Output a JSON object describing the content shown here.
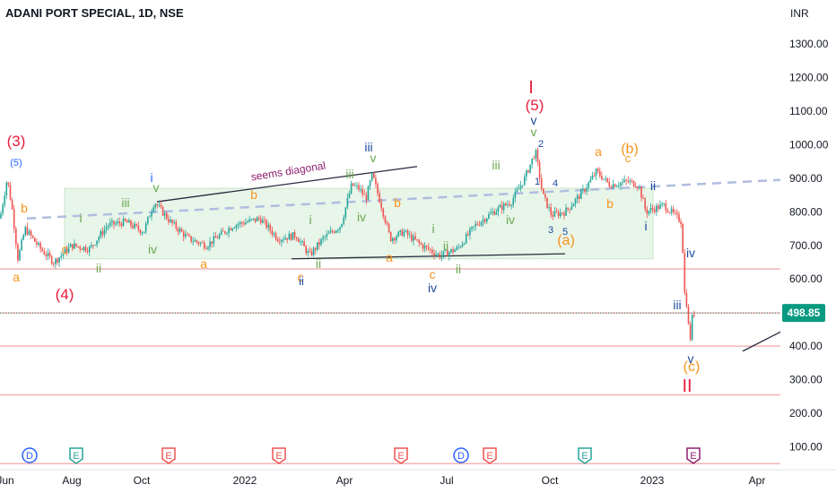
{
  "header": {
    "title": "ADANI PORT SPECIAL, 1D, NSE"
  },
  "colors": {
    "up": "#26a69a",
    "down": "#ef5350",
    "red": "#e91e3c",
    "orange": "#f7931e",
    "green": "#6aa84f",
    "blue": "#2962ff",
    "navy": "#1a4a9a",
    "purple": "#8e1f6e",
    "rect": "#e8f5e9",
    "dash": "#b0bde0",
    "price": "#089981",
    "hline": "#f4b6b6"
  },
  "chart_data": {
    "type": "candlestick",
    "currency": "INR",
    "ylim": [
      50,
      1370
    ],
    "y_ticks": [
      "1300.00",
      "1200.00",
      "1100.00",
      "1000.00",
      "900.00",
      "800.00",
      "700.00",
      "600.00",
      "500.00",
      "400.00",
      "300.00",
      "200.00",
      "100.00"
    ],
    "x_ticks": [
      "Jun",
      "Aug",
      "Oct",
      "2022",
      "Apr",
      "Jul",
      "Oct",
      "2023",
      "Apr"
    ],
    "last_price": "498.85",
    "close_path": [
      [
        0,
        780
      ],
      [
        8,
        900
      ],
      [
        14,
        800
      ],
      [
        20,
        660
      ],
      [
        28,
        750
      ],
      [
        45,
        690
      ],
      [
        60,
        650
      ],
      [
        80,
        700
      ],
      [
        100,
        690
      ],
      [
        120,
        760
      ],
      [
        140,
        770
      ],
      [
        160,
        740
      ],
      [
        172,
        830
      ],
      [
        190,
        770
      ],
      [
        210,
        720
      ],
      [
        230,
        700
      ],
      [
        260,
        760
      ],
      [
        290,
        780
      ],
      [
        310,
        720
      ],
      [
        330,
        730
      ],
      [
        345,
        670
      ],
      [
        360,
        720
      ],
      [
        380,
        760
      ],
      [
        392,
        880
      ],
      [
        400,
        870
      ],
      [
        408,
        840
      ],
      [
        415,
        910
      ],
      [
        425,
        820
      ],
      [
        435,
        720
      ],
      [
        450,
        740
      ],
      [
        470,
        700
      ],
      [
        490,
        670
      ],
      [
        510,
        690
      ],
      [
        530,
        760
      ],
      [
        550,
        800
      ],
      [
        570,
        830
      ],
      [
        585,
        900
      ],
      [
        597,
        980
      ],
      [
        605,
        850
      ],
      [
        615,
        790
      ],
      [
        630,
        800
      ],
      [
        650,
        860
      ],
      [
        665,
        920
      ],
      [
        680,
        880
      ],
      [
        700,
        890
      ],
      [
        712,
        880
      ],
      [
        720,
        800
      ],
      [
        740,
        820
      ],
      [
        760,
        770
      ],
      [
        763,
        560
      ],
      [
        766,
        520
      ],
      [
        769,
        400
      ],
      [
        771,
        480
      ],
      [
        774,
        498
      ]
    ],
    "hlines": [
      630,
      498.85,
      400,
      255,
      50
    ],
    "dotted_line": 498.85,
    "dashed_line": {
      "from": [
        30,
        780
      ],
      "to": [
        870,
        895
      ]
    },
    "rectangle": {
      "x": [
        72,
        728
      ],
      "y": [
        660,
        870
      ]
    },
    "trendlines": [
      {
        "from": [
          175,
          830
        ],
        "to": [
          465,
          935
        ]
      },
      {
        "from": [
          325,
          660
        ],
        "to": [
          630,
          675
        ]
      },
      {
        "from": [
          828,
          385
        ],
        "to": [
          872,
          445
        ]
      }
    ],
    "events": [
      {
        "x": 33,
        "label": "D",
        "kind": "dividend"
      },
      {
        "x": 85,
        "label": "E",
        "kind": "earnings"
      },
      {
        "x": 188,
        "label": "E",
        "kind": "earnings-red"
      },
      {
        "x": 311,
        "label": "E",
        "kind": "earnings-red"
      },
      {
        "x": 447,
        "label": "E",
        "kind": "earnings-red"
      },
      {
        "x": 514,
        "label": "D",
        "kind": "dividend"
      },
      {
        "x": 546,
        "label": "E",
        "kind": "earnings-red"
      },
      {
        "x": 652,
        "label": "E",
        "kind": "earnings"
      },
      {
        "x": 773,
        "label": "E",
        "kind": "earnings-purple"
      }
    ],
    "annotations": [
      {
        "t": "(3)",
        "x": 18,
        "y": 163,
        "c": "red",
        "s": 17
      },
      {
        "t": "(5)",
        "x": 18,
        "y": 185,
        "c": "blue",
        "s": 11
      },
      {
        "t": "b",
        "x": 27,
        "y": 237,
        "c": "orange",
        "s": 14
      },
      {
        "t": "a",
        "x": 18,
        "y": 314,
        "c": "orange",
        "s": 14
      },
      {
        "t": "c",
        "x": 72,
        "y": 283,
        "c": "orange",
        "s": 14
      },
      {
        "t": "(4)",
        "x": 72,
        "y": 334,
        "c": "red",
        "s": 17
      },
      {
        "t": "i",
        "x": 90,
        "y": 248,
        "c": "green",
        "s": 14
      },
      {
        "t": "ii",
        "x": 110,
        "y": 304,
        "c": "green",
        "s": 14
      },
      {
        "t": "iii",
        "x": 140,
        "y": 231,
        "c": "green",
        "s": 14
      },
      {
        "t": "iv",
        "x": 170,
        "y": 283,
        "c": "green",
        "s": 14
      },
      {
        "t": "i",
        "x": 169,
        "y": 203,
        "c": "blue",
        "s": 14
      },
      {
        "t": "v",
        "x": 174,
        "y": 214,
        "c": "green",
        "s": 14
      },
      {
        "t": "a",
        "x": 227,
        "y": 299,
        "c": "orange",
        "s": 14
      },
      {
        "t": "b",
        "x": 283,
        "y": 222,
        "c": "orange",
        "s": 14
      },
      {
        "t": "seems diagonal",
        "x": 322,
        "y": 195,
        "c": "purple",
        "s": 12,
        "rot": -9
      },
      {
        "t": "i",
        "x": 346,
        "y": 250,
        "c": "green",
        "s": 14
      },
      {
        "t": "c",
        "x": 335,
        "y": 314,
        "c": "orange",
        "s": 14
      },
      {
        "t": "ii",
        "x": 336,
        "y": 318,
        "c": "navy",
        "s": 13
      },
      {
        "t": "ii",
        "x": 355,
        "y": 299,
        "c": "green",
        "s": 14
      },
      {
        "t": "iii",
        "x": 411,
        "y": 169,
        "c": "navy",
        "s": 14
      },
      {
        "t": "iii",
        "x": 390,
        "y": 199,
        "c": "green",
        "s": 14
      },
      {
        "t": "v",
        "x": 416,
        "y": 181,
        "c": "green",
        "s": 14
      },
      {
        "t": "iv",
        "x": 403,
        "y": 247,
        "c": "green",
        "s": 14
      },
      {
        "t": "b",
        "x": 443,
        "y": 231,
        "c": "orange",
        "s": 14
      },
      {
        "t": "a",
        "x": 434,
        "y": 292,
        "c": "orange",
        "s": 14
      },
      {
        "t": "i",
        "x": 483,
        "y": 260,
        "c": "green",
        "s": 14
      },
      {
        "t": "ii",
        "x": 497,
        "y": 279,
        "c": "green",
        "s": 14
      },
      {
        "t": "c",
        "x": 482,
        "y": 311,
        "c": "orange",
        "s": 14
      },
      {
        "t": "iv",
        "x": 482,
        "y": 326,
        "c": "navy",
        "s": 14
      },
      {
        "t": "ii",
        "x": 511,
        "y": 305,
        "c": "green",
        "s": 14
      },
      {
        "t": "iii",
        "x": 553,
        "y": 189,
        "c": "green",
        "s": 14
      },
      {
        "t": "iv",
        "x": 569,
        "y": 250,
        "c": "green",
        "s": 14
      },
      {
        "t": "I",
        "x": 592,
        "y": 104,
        "c": "red",
        "s": 20
      },
      {
        "t": "(5)",
        "x": 596,
        "y": 123,
        "c": "red",
        "s": 17
      },
      {
        "t": "v",
        "x": 595,
        "y": 139,
        "c": "navy",
        "s": 14
      },
      {
        "t": "v",
        "x": 595,
        "y": 152,
        "c": "green",
        "s": 14
      },
      {
        "t": "2",
        "x": 603,
        "y": 164,
        "c": "navy",
        "s": 11
      },
      {
        "t": "1",
        "x": 599,
        "y": 206,
        "c": "navy",
        "s": 11
      },
      {
        "t": "4",
        "x": 619,
        "y": 208,
        "c": "navy",
        "s": 11
      },
      {
        "t": "3",
        "x": 614,
        "y": 260,
        "c": "navy",
        "s": 11
      },
      {
        "t": "5",
        "x": 630,
        "y": 262,
        "c": "navy",
        "s": 11
      },
      {
        "t": "(a)",
        "x": 631,
        "y": 273,
        "c": "orange",
        "s": 16
      },
      {
        "t": "a",
        "x": 667,
        "y": 174,
        "c": "orange",
        "s": 14
      },
      {
        "t": "b",
        "x": 680,
        "y": 232,
        "c": "orange",
        "s": 14
      },
      {
        "t": "(b)",
        "x": 702,
        "y": 171,
        "c": "orange",
        "s": 16
      },
      {
        "t": "c",
        "x": 700,
        "y": 181,
        "c": "orange",
        "s": 13
      },
      {
        "t": "ii",
        "x": 728,
        "y": 212,
        "c": "navy",
        "s": 14
      },
      {
        "t": "i",
        "x": 720,
        "y": 257,
        "c": "navy",
        "s": 14
      },
      {
        "t": "iv",
        "x": 770,
        "y": 287,
        "c": "navy",
        "s": 14
      },
      {
        "t": "iii",
        "x": 755,
        "y": 345,
        "c": "navy",
        "s": 14
      },
      {
        "t": "v",
        "x": 770,
        "y": 405,
        "c": "navy",
        "s": 14
      },
      {
        "t": "(c)",
        "x": 771,
        "y": 414,
        "c": "orange",
        "s": 16
      },
      {
        "t": "II",
        "x": 766,
        "y": 437,
        "c": "red",
        "s": 20
      }
    ]
  }
}
